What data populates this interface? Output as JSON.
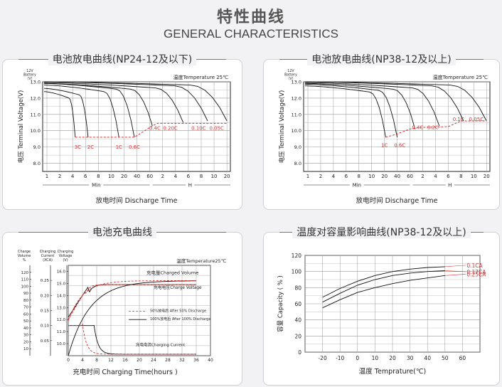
{
  "header": {
    "title_cn": "特性曲线",
    "title_en": "GENERAL CHARACTERISTICS"
  },
  "panels": {
    "p1": {
      "title": "电池放电曲线(NP24-12及以下)"
    },
    "p2": {
      "title": "电池放电曲线(NP38-12及以上)"
    },
    "p3": {
      "title": "电池充电曲线"
    },
    "p4": {
      "title": "温度对容量影响曲线(NP38-12及以上)"
    }
  },
  "chart_data": [
    {
      "type": "line",
      "title": "电池放电曲线(NP24-12及以下)",
      "ylabel": "电压 Terminal Voltage(V)",
      "ylabel_top": [
        "12V",
        "Battery",
        "（V）"
      ],
      "xlabel": "放电时间 Discharge Time",
      "note": "温度Temperature 25℃",
      "yticks": [
        "13.0",
        "12.0",
        "11.0",
        "10.0",
        "9.0",
        "8.0"
      ],
      "xticks": [
        "1",
        "2",
        "4",
        "6",
        "8",
        "10",
        "20",
        "40",
        "60",
        "2",
        "4",
        "6",
        "8",
        "10",
        "20"
      ],
      "xunits": [
        "Min",
        "H"
      ],
      "curve_labels": [
        "3C",
        "2C",
        "1C",
        "0.6C",
        "0.4C",
        "0.20C",
        "0.10C",
        "0.05C"
      ]
    },
    {
      "type": "line",
      "title": "电池放电曲线(NP38-12及以上)",
      "ylabel": "电压 Terminal Voltage(V)",
      "ylabel_top": [
        "12V",
        "Battery",
        "（V）"
      ],
      "xlabel": "放电时间 Discharge Time",
      "note": "温度Temperature 25℃",
      "yticks": [
        "13.0",
        "12.0",
        "11.0",
        "10.0",
        "9.0",
        "8.0"
      ],
      "xticks": [
        "1",
        "2",
        "4",
        "6",
        "8",
        "10",
        "20",
        "40",
        "60",
        "2",
        "4",
        "6",
        "8",
        "10",
        "20"
      ],
      "xunits": [
        "Min",
        "H"
      ],
      "curve_labels": [
        "1C",
        "0.6C",
        "0.4C",
        "0.2C",
        "0.1C",
        "0.05C"
      ]
    },
    {
      "type": "line",
      "title": "电池充电曲线",
      "note": "温度Temperature25℃",
      "axis_heads": {
        "a": [
          "Charge",
          "Volume",
          "%"
        ],
        "b": [
          "Charging",
          "Current",
          "(XCA)"
        ],
        "c": [
          "Charging",
          "Voltage",
          "(V)"
        ]
      },
      "y1ticks": [
        "120",
        "110",
        "100",
        "90",
        "80",
        "70",
        "60",
        "50",
        "40",
        "30",
        "20",
        "10"
      ],
      "y2ticks": [
        "0.25",
        "0.20",
        "0.15",
        "0.10",
        "0.05"
      ],
      "y3ticks": [
        "16.0",
        "15.0",
        "14.0",
        "13.0",
        "12.0",
        "11.0",
        "10.0"
      ],
      "xticks": [
        "0",
        "4",
        "8",
        "12",
        "16",
        "20",
        "24",
        "28",
        "32",
        "36",
        "40"
      ],
      "xlabel": "充电时间 Charging Time(hours )",
      "labels": [
        "充电量Charged Volume",
        "充电电压Charge Voltage",
        "50%放电后 After 50% Discharge",
        "100%放电后 After 100% Discharge",
        "充电电流Charging Current"
      ]
    },
    {
      "type": "line",
      "title": "温度对容量影响曲线(NP38-12及以上)",
      "ylabel": "容量 Capacity ( % )",
      "xlabel": "温度 Temprature(℃)",
      "yticks": [
        "120",
        "100",
        "80",
        "60",
        "40",
        "20",
        "0"
      ],
      "x": [
        -20,
        -10,
        0,
        10,
        20,
        30,
        40,
        50,
        60
      ],
      "xticks": [
        "-20",
        "-10",
        "0",
        "10",
        "20",
        "30",
        "40",
        "50",
        "60"
      ],
      "ylim": [
        0,
        120
      ],
      "series": [
        {
          "name": "0.1CA",
          "x": [
            -20,
            -10,
            0,
            10,
            20,
            30,
            40,
            50
          ],
          "values": [
            68,
            79,
            88,
            95,
            100,
            103,
            105,
            106
          ]
        },
        {
          "name": "0.17CA",
          "x": [
            -20,
            -10,
            0,
            10,
            20,
            30,
            40,
            50
          ],
          "values": [
            62,
            73,
            83,
            90,
            95,
            98,
            100,
            101
          ]
        },
        {
          "name": "0.25CA",
          "x": [
            -20,
            -10,
            0,
            10,
            20,
            30,
            40,
            50
          ],
          "values": [
            55,
            65,
            74,
            80,
            85,
            89,
            92,
            95
          ]
        }
      ]
    }
  ]
}
